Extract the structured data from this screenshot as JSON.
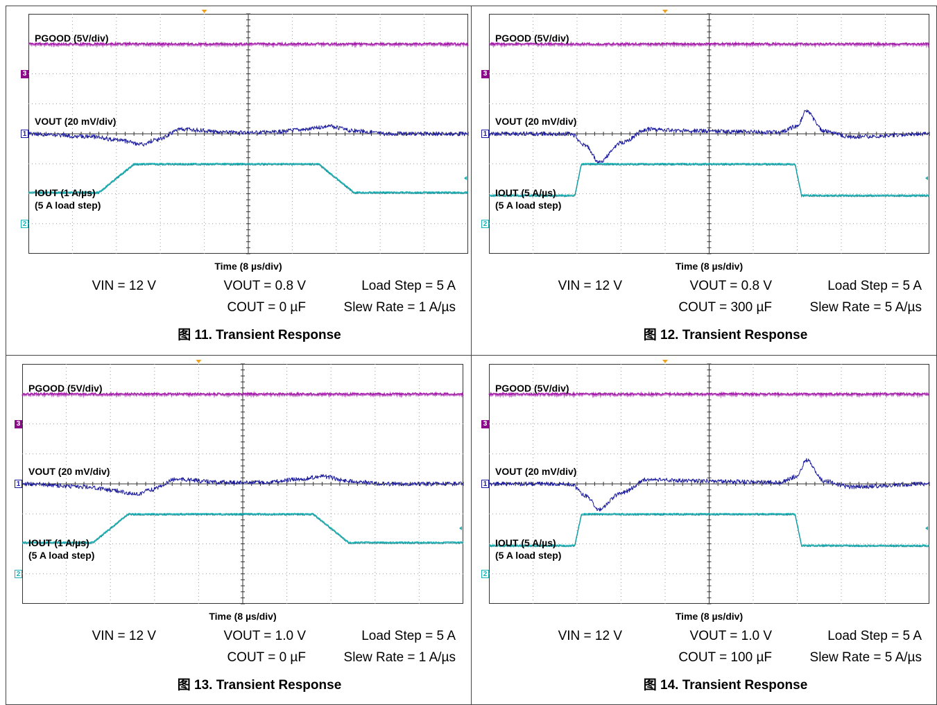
{
  "colors": {
    "pgood": "#a21aa8",
    "vout": "#1a1a9c",
    "iout": "#1ab0b4",
    "grid": "#9a9a9a",
    "frame": "#444444",
    "trigger": "#f0a020"
  },
  "panels": [
    {
      "pgood_label": "PGOOD (5V/div)",
      "vout_label": "VOUT (20 mV/div)",
      "iout_label_1": "IOUT (1 A/µs)",
      "iout_label_2": "(5 A load step)",
      "time_label": "Time (8 µs/div)",
      "vin": "VIN = 12 V",
      "vout": "VOUT = 0.8 V",
      "load_step": "Load Step = 5 A",
      "cout": "COUT = 0 µF",
      "slew": "Slew Rate = 1 A/µs",
      "caption": "图 11. Transient Response",
      "ch3_marker": "3",
      "ch1_marker": "1",
      "ch2_marker": "2"
    },
    {
      "pgood_label": "PGOOD (5V/div)",
      "vout_label": "VOUT (20 mV/div)",
      "iout_label_1": "IOUT (5 A/µs)",
      "iout_label_2": "(5 A load step)",
      "time_label": "Time (8 µs/div)",
      "vin": "VIN = 12 V",
      "vout": "VOUT = 0.8 V",
      "load_step": "Load Step = 5 A",
      "cout": "COUT = 300 µF",
      "slew": "Slew Rate = 5 A/µs",
      "caption": "图 12. Transient Response",
      "ch3_marker": "3",
      "ch1_marker": "1",
      "ch2_marker": "2"
    },
    {
      "pgood_label": "PGOOD (5V/div)",
      "vout_label": "VOUT (20 mV/div)",
      "iout_label_1": "IOUT (1 A/µs)",
      "iout_label_2": "(5 A load step)",
      "time_label": "Time (8 µs/div)",
      "vin": "VIN = 12 V",
      "vout": "VOUT = 1.0 V",
      "load_step": "Load Step = 5 A",
      "cout": "COUT = 0 µF",
      "slew": "Slew Rate = 1 A/µs",
      "caption": "图 13. Transient Response",
      "ch3_marker": "3",
      "ch1_marker": "1",
      "ch2_marker": "2"
    },
    {
      "pgood_label": "PGOOD (5V/div)",
      "vout_label": "VOUT (20 mV/div)",
      "iout_label_1": "IOUT (5 A/µs)",
      "iout_label_2": "(5 A load step)",
      "time_label": "Time (8 µs/div)",
      "vin": "VIN = 12 V",
      "vout": "VOUT = 1.0 V",
      "load_step": "Load Step = 5 A",
      "cout": "COUT = 100 µF",
      "slew": "Slew Rate = 5 A/µs",
      "caption": "图 14. Transient Response",
      "ch3_marker": "3",
      "ch1_marker": "1",
      "ch2_marker": "2"
    }
  ],
  "chart_data": [
    {
      "type": "line",
      "title": "图 11. Transient Response",
      "xlabel": "Time (8 µs/div)",
      "x_divisions": 10,
      "y_divisions": 8,
      "series": [
        {
          "name": "PGOOD (5V/div)",
          "x": [
            0,
            10
          ],
          "y": [
            3.0,
            3.0
          ]
        },
        {
          "name": "VOUT (20 mV/div)",
          "x": [
            0,
            1.5,
            2.0,
            2.6,
            2.9,
            3.5,
            4.5,
            5.5,
            6.3,
            6.8,
            7.4,
            8.2,
            10
          ],
          "y": [
            0,
            -0.1,
            -0.2,
            -0.35,
            -0.2,
            0.15,
            0.05,
            0.05,
            0.15,
            0.25,
            0.1,
            0,
            0
          ]
        },
        {
          "name": "IOUT (1 A/µs)",
          "x": [
            0,
            1.6,
            2.4,
            6.6,
            7.4,
            10
          ],
          "y": [
            -1.95,
            -1.95,
            -1.0,
            -1.0,
            -1.95,
            -1.95
          ]
        }
      ]
    },
    {
      "type": "line",
      "title": "图 12. Transient Response",
      "xlabel": "Time (8 µs/div)",
      "x_divisions": 10,
      "y_divisions": 8,
      "series": [
        {
          "name": "PGOOD (5V/div)",
          "x": [
            0,
            10
          ],
          "y": [
            3.0,
            3.0
          ]
        },
        {
          "name": "VOUT (20 mV/div)",
          "x": [
            0,
            1.85,
            2.2,
            2.5,
            3.0,
            3.6,
            4.5,
            6.6,
            7.0,
            7.2,
            7.6,
            8.2,
            10
          ],
          "y": [
            0,
            0,
            -0.4,
            -0.95,
            -0.3,
            0.15,
            0.1,
            0.05,
            0.25,
            0.75,
            0.1,
            -0.1,
            0
          ]
        },
        {
          "name": "IOUT (5 A/µs)",
          "x": [
            0,
            1.95,
            2.1,
            6.95,
            7.1,
            10
          ],
          "y": [
            -2.05,
            -2.05,
            -1.0,
            -1.0,
            -2.05,
            -2.05
          ]
        }
      ]
    },
    {
      "type": "line",
      "title": "图 13. Transient Response",
      "xlabel": "Time (8 µs/div)",
      "x_divisions": 10,
      "y_divisions": 8,
      "series": [
        {
          "name": "PGOOD (5V/div)",
          "x": [
            0,
            10
          ],
          "y": [
            3.0,
            3.0
          ]
        },
        {
          "name": "VOUT (20 mV/div)",
          "x": [
            0,
            1.5,
            2.0,
            2.6,
            2.9,
            3.5,
            4.5,
            5.5,
            6.3,
            6.8,
            7.4,
            8.2,
            10
          ],
          "y": [
            0,
            -0.1,
            -0.2,
            -0.35,
            -0.2,
            0.15,
            0.05,
            0.05,
            0.15,
            0.25,
            0.1,
            0,
            0
          ]
        },
        {
          "name": "IOUT (1 A/µs)",
          "x": [
            0,
            1.6,
            2.4,
            6.6,
            7.4,
            10
          ],
          "y": [
            -1.95,
            -1.95,
            -1.0,
            -1.0,
            -1.95,
            -1.95
          ]
        }
      ]
    },
    {
      "type": "line",
      "title": "图 14. Transient Response",
      "xlabel": "Time (8 µs/div)",
      "x_divisions": 10,
      "y_divisions": 8,
      "series": [
        {
          "name": "PGOOD (5V/div)",
          "x": [
            0,
            10
          ],
          "y": [
            3.0,
            3.0
          ]
        },
        {
          "name": "VOUT (20 mV/div)",
          "x": [
            0,
            1.85,
            2.2,
            2.5,
            3.0,
            3.6,
            4.5,
            6.6,
            7.0,
            7.2,
            7.6,
            8.2,
            10
          ],
          "y": [
            0,
            0,
            -0.4,
            -0.85,
            -0.3,
            0.15,
            0.1,
            0.05,
            0.25,
            0.8,
            0.1,
            -0.1,
            0
          ]
        },
        {
          "name": "IOUT (5 A/µs)",
          "x": [
            0,
            1.95,
            2.1,
            6.95,
            7.1,
            10
          ],
          "y": [
            -2.05,
            -2.05,
            -1.0,
            -1.0,
            -2.05,
            -2.05
          ]
        }
      ]
    }
  ]
}
